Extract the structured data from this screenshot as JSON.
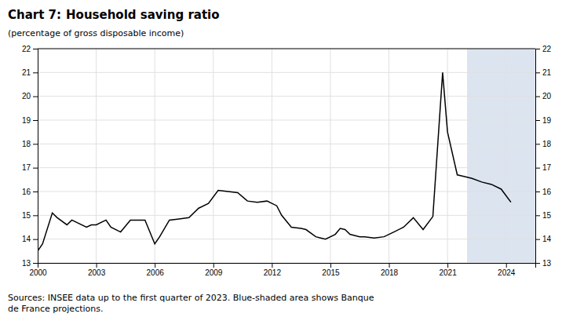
{
  "chart_data": {
    "type": "line",
    "title": [
      "Chart 7:",
      "Household saving ratio"
    ],
    "subtitle": "(percentage of gross disposable income)",
    "source": "Sources: INSEE data up to the first quarter of 2023. Blue-shaded area shows Banque\nde France projections.",
    "color": "#000000",
    "annotations": [
      {
        "type": "span",
        "x": [
          2022.0,
          2025.5
        ],
        "color": "#dce4f0"
      }
    ],
    "xlim": [
      2000,
      2025.5
    ],
    "ylim": [
      13,
      22
    ],
    "xticks": [
      2000,
      2003,
      2006,
      2009,
      2012,
      2015,
      2018,
      2021,
      2024
    ],
    "yticks": [
      13,
      14,
      15,
      16,
      17,
      18,
      19,
      20,
      21,
      22
    ],
    "grid": true,
    "x": [
      2000.0,
      2000.25,
      2000.75,
      2001.0,
      2001.5,
      2001.75,
      2002.0,
      2002.5,
      2002.75,
      2003.0,
      2003.5,
      2003.75,
      2004.25,
      2004.75,
      2005.0,
      2005.5,
      2006.0,
      2006.25,
      2006.75,
      2007.25,
      2007.75,
      2008.25,
      2008.75,
      2009.25,
      2009.75,
      2010.25,
      2010.75,
      2011.25,
      2011.75,
      2012.25,
      2012.5,
      2013.0,
      2013.5,
      2013.75,
      2014.25,
      2014.5,
      2014.75,
      2015.25,
      2015.5,
      2015.75,
      2016.0,
      2016.5,
      2016.75,
      2017.25,
      2017.75,
      2018.25,
      2018.75,
      2019.25,
      2019.75,
      2020.25,
      2020.75,
      2021.0,
      2021.5,
      2021.75,
      2022.0,
      2022.25,
      2022.75,
      2023.25,
      2023.75,
      2024.25
    ],
    "values": [
      13.5,
      13.8,
      15.1,
      14.9,
      14.6,
      14.8,
      14.7,
      14.5,
      14.6,
      14.6,
      14.8,
      14.5,
      14.3,
      14.8,
      14.8,
      14.8,
      13.8,
      14.1,
      14.8,
      14.85,
      14.9,
      15.3,
      15.5,
      16.05,
      16.0,
      15.95,
      15.6,
      15.55,
      15.6,
      15.4,
      15.0,
      14.5,
      14.45,
      14.4,
      14.1,
      14.05,
      14.0,
      14.2,
      14.45,
      14.4,
      14.2,
      14.1,
      14.1,
      14.05,
      14.1,
      14.3,
      14.5,
      14.9,
      14.4,
      14.95,
      21.0,
      18.5,
      16.7,
      16.65,
      16.6,
      16.55,
      16.4,
      16.3,
      16.1,
      15.55
    ]
  }
}
